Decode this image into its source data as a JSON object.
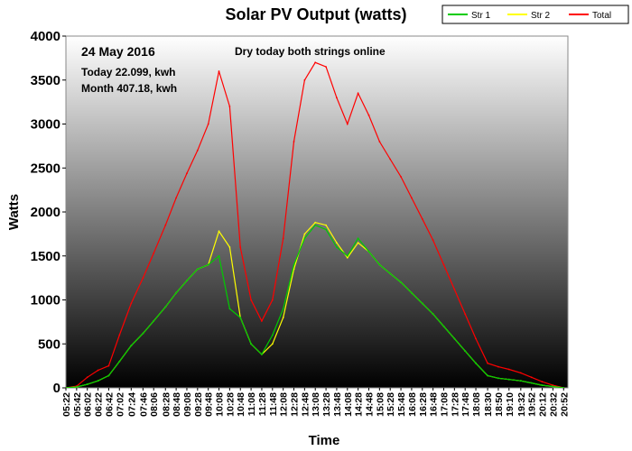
{
  "chart_data": {
    "type": "line",
    "title": "Solar PV Output (watts)",
    "xlabel": "Time",
    "ylabel": "Watts",
    "ylim": [
      0,
      4000
    ],
    "yticks": [
      0,
      500,
      1000,
      1500,
      2000,
      2500,
      3000,
      3500,
      4000
    ],
    "xlim": [
      "05:22",
      "21:00"
    ],
    "xticks": [
      "05:22",
      "05:42",
      "06:02",
      "06:22",
      "06:42",
      "07:02",
      "07:24",
      "07:46",
      "08:06",
      "08:28",
      "08:48",
      "09:08",
      "09:28",
      "09:48",
      "10:08",
      "10:28",
      "10:48",
      "11:08",
      "11:28",
      "11:48",
      "12:08",
      "12:28",
      "12:48",
      "13:08",
      "13:28",
      "13:48",
      "14:08",
      "14:28",
      "14:48",
      "15:08",
      "15:28",
      "15:48",
      "16:08",
      "16:28",
      "16:48",
      "17:08",
      "17:28",
      "17:48",
      "18:08",
      "18:30",
      "18:50",
      "19:10",
      "19:32",
      "19:52",
      "20:12",
      "20:32",
      "20:52"
    ],
    "legend_position": "top-right",
    "background": "vertical gradient white to black",
    "series": [
      {
        "name": "Str 1",
        "color": "#00cc00",
        "values": [
          [
            "05:22",
            0
          ],
          [
            "05:42",
            10
          ],
          [
            "06:02",
            40
          ],
          [
            "06:22",
            80
          ],
          [
            "06:42",
            140
          ],
          [
            "07:02",
            300
          ],
          [
            "07:24",
            480
          ],
          [
            "07:46",
            620
          ],
          [
            "08:06",
            760
          ],
          [
            "08:28",
            920
          ],
          [
            "08:48",
            1080
          ],
          [
            "09:08",
            1220
          ],
          [
            "09:28",
            1350
          ],
          [
            "09:48",
            1400
          ],
          [
            "10:08",
            1500
          ],
          [
            "10:28",
            900
          ],
          [
            "10:48",
            800
          ],
          [
            "11:08",
            500
          ],
          [
            "11:28",
            380
          ],
          [
            "11:48",
            600
          ],
          [
            "12:08",
            900
          ],
          [
            "12:28",
            1400
          ],
          [
            "12:48",
            1700
          ],
          [
            "13:08",
            1850
          ],
          [
            "13:28",
            1800
          ],
          [
            "13:48",
            1600
          ],
          [
            "14:08",
            1500
          ],
          [
            "14:28",
            1700
          ],
          [
            "14:48",
            1550
          ],
          [
            "15:08",
            1400
          ],
          [
            "15:28",
            1300
          ],
          [
            "15:48",
            1200
          ],
          [
            "16:08",
            1080
          ],
          [
            "16:28",
            960
          ],
          [
            "16:48",
            840
          ],
          [
            "17:08",
            700
          ],
          [
            "17:28",
            560
          ],
          [
            "17:48",
            420
          ],
          [
            "18:08",
            280
          ],
          [
            "18:30",
            140
          ],
          [
            "18:50",
            110
          ],
          [
            "19:10",
            95
          ],
          [
            "19:32",
            80
          ],
          [
            "19:52",
            55
          ],
          [
            "20:12",
            30
          ],
          [
            "20:32",
            15
          ],
          [
            "20:52",
            0
          ]
        ]
      },
      {
        "name": "Str 2",
        "color": "#ffff00",
        "values": [
          [
            "05:22",
            0
          ],
          [
            "05:42",
            10
          ],
          [
            "06:02",
            40
          ],
          [
            "06:22",
            80
          ],
          [
            "06:42",
            140
          ],
          [
            "07:02",
            300
          ],
          [
            "07:24",
            480
          ],
          [
            "07:46",
            620
          ],
          [
            "08:06",
            760
          ],
          [
            "08:28",
            920
          ],
          [
            "08:48",
            1080
          ],
          [
            "09:08",
            1220
          ],
          [
            "09:28",
            1350
          ],
          [
            "09:48",
            1400
          ],
          [
            "10:08",
            1780
          ],
          [
            "10:28",
            1600
          ],
          [
            "10:48",
            800
          ],
          [
            "11:08",
            500
          ],
          [
            "11:28",
            380
          ],
          [
            "11:48",
            500
          ],
          [
            "12:08",
            800
          ],
          [
            "12:28",
            1350
          ],
          [
            "12:48",
            1750
          ],
          [
            "13:08",
            1880
          ],
          [
            "13:28",
            1850
          ],
          [
            "13:48",
            1650
          ],
          [
            "14:08",
            1480
          ],
          [
            "14:28",
            1650
          ],
          [
            "14:48",
            1550
          ],
          [
            "15:08",
            1400
          ],
          [
            "15:28",
            1300
          ],
          [
            "15:48",
            1200
          ],
          [
            "16:08",
            1080
          ],
          [
            "16:28",
            960
          ],
          [
            "16:48",
            840
          ],
          [
            "17:08",
            700
          ],
          [
            "17:28",
            560
          ],
          [
            "17:48",
            420
          ],
          [
            "18:08",
            280
          ],
          [
            "18:30",
            140
          ],
          [
            "18:50",
            110
          ],
          [
            "19:10",
            95
          ],
          [
            "19:32",
            80
          ],
          [
            "19:52",
            55
          ],
          [
            "20:12",
            30
          ],
          [
            "20:32",
            15
          ],
          [
            "20:52",
            0
          ]
        ]
      },
      {
        "name": "Total",
        "color": "#ff0000",
        "values": [
          [
            "05:22",
            0
          ],
          [
            "05:42",
            20
          ],
          [
            "06:02",
            120
          ],
          [
            "06:22",
            200
          ],
          [
            "06:42",
            250
          ],
          [
            "07:02",
            600
          ],
          [
            "07:24",
            960
          ],
          [
            "07:46",
            1250
          ],
          [
            "08:06",
            1530
          ],
          [
            "08:28",
            1850
          ],
          [
            "08:48",
            2160
          ],
          [
            "09:08",
            2440
          ],
          [
            "09:28",
            2700
          ],
          [
            "09:48",
            3000
          ],
          [
            "10:08",
            3600
          ],
          [
            "10:28",
            3200
          ],
          [
            "10:48",
            1600
          ],
          [
            "11:08",
            1000
          ],
          [
            "11:28",
            760
          ],
          [
            "11:48",
            1000
          ],
          [
            "12:08",
            1700
          ],
          [
            "12:28",
            2800
          ],
          [
            "12:48",
            3500
          ],
          [
            "13:08",
            3700
          ],
          [
            "13:28",
            3650
          ],
          [
            "13:48",
            3300
          ],
          [
            "14:08",
            3000
          ],
          [
            "14:28",
            3350
          ],
          [
            "14:48",
            3100
          ],
          [
            "15:08",
            2800
          ],
          [
            "15:28",
            2600
          ],
          [
            "15:48",
            2400
          ],
          [
            "16:08",
            2160
          ],
          [
            "16:28",
            1920
          ],
          [
            "16:48",
            1680
          ],
          [
            "17:08",
            1400
          ],
          [
            "17:28",
            1120
          ],
          [
            "17:48",
            840
          ],
          [
            "18:08",
            560
          ],
          [
            "18:30",
            280
          ],
          [
            "18:50",
            240
          ],
          [
            "19:10",
            210
          ],
          [
            "19:32",
            170
          ],
          [
            "19:52",
            120
          ],
          [
            "20:12",
            70
          ],
          [
            "20:32",
            30
          ],
          [
            "20:52",
            0
          ]
        ]
      }
    ],
    "annotations": {
      "date": "24 May 2016",
      "status": "Dry today both strings online",
      "today": "Today 22.099, kwh",
      "month": "Month 407.18, kwh"
    }
  }
}
